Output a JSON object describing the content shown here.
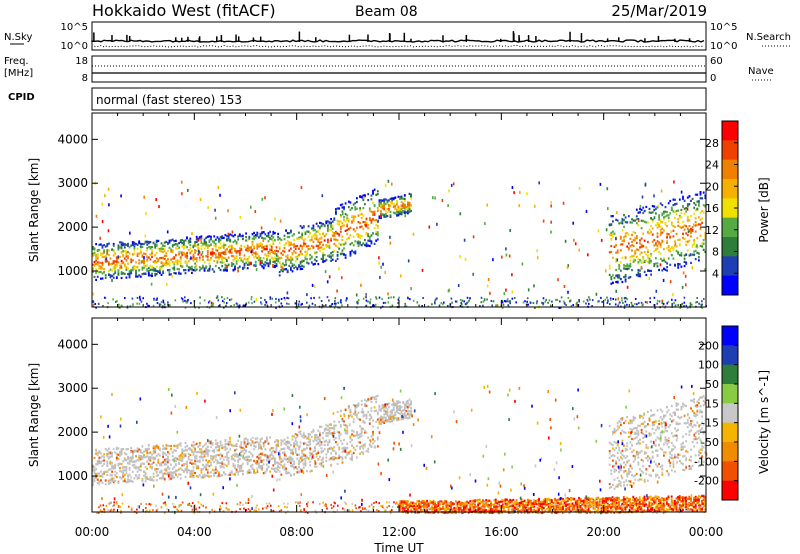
{
  "header": {
    "station": "Hokkaido West (fitACF)",
    "beam": "Beam 08",
    "date": "25/Mar/2019"
  },
  "summary": {
    "nsky_label": "N.Sky",
    "nsearch_label": "N.Search",
    "freq_label_top": "Freq.",
    "freq_label_unit": "[MHz]",
    "nave_label": "Nave",
    "cpid_label": "CPID",
    "mode_text": "normal (fast stereo) 153",
    "noise_ticks": [
      "10^5",
      "10^0"
    ],
    "freq_ticks": [
      "18",
      "8"
    ],
    "nave_ticks": [
      "60",
      "0"
    ]
  },
  "colors": {
    "power_scale": [
      "#0000ff",
      "#1e3fb4",
      "#2e7d3a",
      "#55aa44",
      "#f0e000",
      "#f5b000",
      "#f08000",
      "#f04000",
      "#ff0000"
    ],
    "velocity_scale": [
      "#ff0000",
      "#f05000",
      "#f08c00",
      "#f5b400",
      "#c8c8c8",
      "#88cc44",
      "#2e7d3a",
      "#1e3fb4",
      "#0000ff"
    ],
    "ground_scatter": "#c0c0c0"
  },
  "chart_data": [
    {
      "type": "heatmap",
      "panel": "power",
      "ylabel": "Slant Range [km]",
      "ylim": [
        180,
        4600
      ],
      "yticks": [
        "4000",
        "3000",
        "2000",
        "1000"
      ],
      "xlabel": "Time UT",
      "xticks": [
        "00:00",
        "04:00",
        "08:00",
        "12:00",
        "16:00",
        "20:00",
        "00:00"
      ],
      "colorbar_label": "Power [dB]",
      "colorbar_ticks": [
        "28",
        "24",
        "20",
        "16",
        "12",
        "8",
        "4"
      ],
      "bands": [
        {
          "t0": 0.0,
          "t1": 7.3,
          "r0": 1000,
          "r1": 1750,
          "peak": "mid"
        },
        {
          "t0": 7.3,
          "t1": 9.5,
          "r0": 1150,
          "r1": 2050,
          "peak": "mid"
        },
        {
          "t0": 9.5,
          "t1": 11.2,
          "r0": 1500,
          "r1": 2650,
          "peak": "mid"
        },
        {
          "t0": 11.2,
          "t1": 12.5,
          "r0": 2300,
          "r1": 2700,
          "peak": "low"
        },
        {
          "t0": 20.2,
          "t1": 24.0,
          "r0": 1050,
          "r1": 2500,
          "peak": "mid"
        }
      ]
    },
    {
      "type": "heatmap",
      "panel": "velocity",
      "ylabel": "Slant Range [km]",
      "ylim": [
        180,
        4600
      ],
      "yticks": [
        "4000",
        "3000",
        "2000",
        "1000"
      ],
      "xlabel": "Time UT",
      "xticks": [
        "00:00",
        "04:00",
        "08:00",
        "12:00",
        "16:00",
        "20:00",
        "00:00"
      ],
      "colorbar_label": "Velocity [m s^-1]",
      "colorbar_ticks": [
        "200",
        "100",
        "50",
        "15",
        "-15",
        "-50",
        "-100",
        "-200"
      ],
      "bands": [
        {
          "t0": 0.0,
          "t1": 7.3,
          "r0": 1000,
          "r1": 1750,
          "kind": "ground"
        },
        {
          "t0": 7.3,
          "t1": 9.5,
          "r0": 1150,
          "r1": 2050,
          "kind": "ground"
        },
        {
          "t0": 9.5,
          "t1": 11.2,
          "r0": 1500,
          "r1": 2650,
          "kind": "ground"
        },
        {
          "t0": 11.2,
          "t1": 12.5,
          "r0": 2300,
          "r1": 2700,
          "kind": "ground"
        },
        {
          "t0": 20.2,
          "t1": 24.0,
          "r0": 1050,
          "r1": 2500,
          "kind": "ground"
        },
        {
          "t0": 12.0,
          "t1": 24.0,
          "r0": 180,
          "r1": 500,
          "kind": "ionospheric"
        }
      ]
    }
  ]
}
